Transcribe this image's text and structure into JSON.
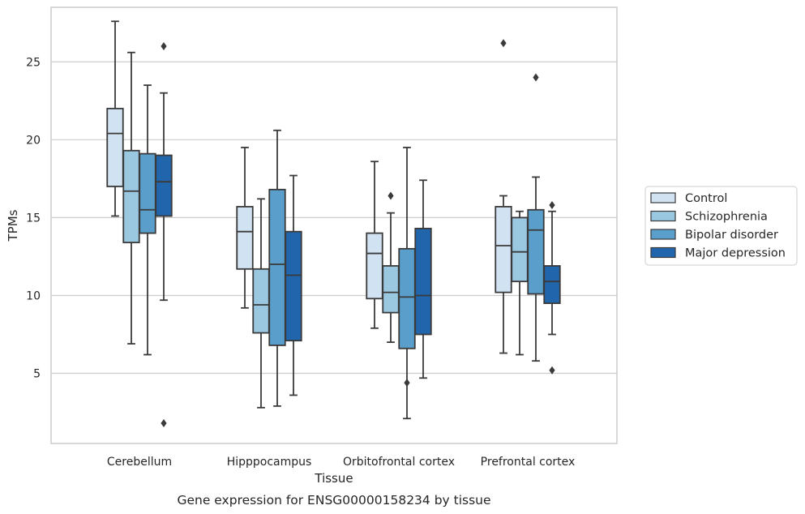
{
  "caption": "Gene expression for ENSG00000158234 by tissue",
  "chart_data": {
    "type": "box",
    "xlabel": "Tissue",
    "ylabel": "TPMs",
    "ylim": [
      0.5,
      28.5
    ],
    "yticks": [
      5,
      10,
      15,
      20,
      25
    ],
    "grid": "horizontal",
    "legend_position": "right",
    "categories": [
      "Cerebellum",
      "Hipppocampus",
      "Orbitofrontal cortex",
      "Prefrontal cortex"
    ],
    "series": [
      {
        "name": "Control",
        "color": "#d1e2f2",
        "boxes": [
          {
            "whisker_low": 15.1,
            "q1": 17.0,
            "median": 20.4,
            "q3": 22.0,
            "whisker_high": 27.6,
            "outliers": []
          },
          {
            "whisker_low": 9.2,
            "q1": 11.7,
            "median": 14.1,
            "q3": 15.7,
            "whisker_high": 19.5,
            "outliers": []
          },
          {
            "whisker_low": 7.9,
            "q1": 9.8,
            "median": 12.7,
            "q3": 14.0,
            "whisker_high": 18.6,
            "outliers": []
          },
          {
            "whisker_low": 6.3,
            "q1": 10.2,
            "median": 13.2,
            "q3": 15.7,
            "whisker_high": 16.4,
            "outliers": [
              26.2
            ]
          }
        ]
      },
      {
        "name": "Schizophrenia",
        "color": "#9ac8e0",
        "boxes": [
          {
            "whisker_low": 6.9,
            "q1": 13.4,
            "median": 16.7,
            "q3": 19.3,
            "whisker_high": 25.6,
            "outliers": []
          },
          {
            "whisker_low": 2.8,
            "q1": 7.6,
            "median": 9.4,
            "q3": 11.7,
            "whisker_high": 16.2,
            "outliers": []
          },
          {
            "whisker_low": 7.0,
            "q1": 8.9,
            "median": 10.2,
            "q3": 11.9,
            "whisker_high": 15.3,
            "outliers": [
              16.4
            ]
          },
          {
            "whisker_low": 6.2,
            "q1": 10.9,
            "median": 12.8,
            "q3": 15.0,
            "whisker_high": 15.4,
            "outliers": []
          }
        ]
      },
      {
        "name": "Bipolar disorder",
        "color": "#5a9fcb",
        "boxes": [
          {
            "whisker_low": 6.2,
            "q1": 14.0,
            "median": 15.5,
            "q3": 19.1,
            "whisker_high": 23.5,
            "outliers": []
          },
          {
            "whisker_low": 2.9,
            "q1": 6.8,
            "median": 12.0,
            "q3": 16.8,
            "whisker_high": 20.6,
            "outliers": []
          },
          {
            "whisker_low": 2.1,
            "q1": 6.6,
            "median": 9.9,
            "q3": 13.0,
            "whisker_high": 19.5,
            "outliers": [
              4.4
            ]
          },
          {
            "whisker_low": 5.8,
            "q1": 10.1,
            "median": 14.2,
            "q3": 15.5,
            "whisker_high": 17.6,
            "outliers": [
              24.0
            ]
          }
        ]
      },
      {
        "name": "Major depression",
        "color": "#2166ac",
        "boxes": [
          {
            "whisker_low": 9.7,
            "q1": 15.1,
            "median": 17.3,
            "q3": 19.0,
            "whisker_high": 23.0,
            "outliers": [
              26.0,
              1.8
            ]
          },
          {
            "whisker_low": 3.6,
            "q1": 7.1,
            "median": 11.3,
            "q3": 14.1,
            "whisker_high": 17.7,
            "outliers": []
          },
          {
            "whisker_low": 4.7,
            "q1": 7.5,
            "median": 10.0,
            "q3": 14.3,
            "whisker_high": 17.4,
            "outliers": []
          },
          {
            "whisker_low": 7.5,
            "q1": 9.5,
            "median": 10.9,
            "q3": 11.9,
            "whisker_high": 15.4,
            "outliers": [
              15.8,
              5.2
            ]
          }
        ]
      }
    ]
  }
}
